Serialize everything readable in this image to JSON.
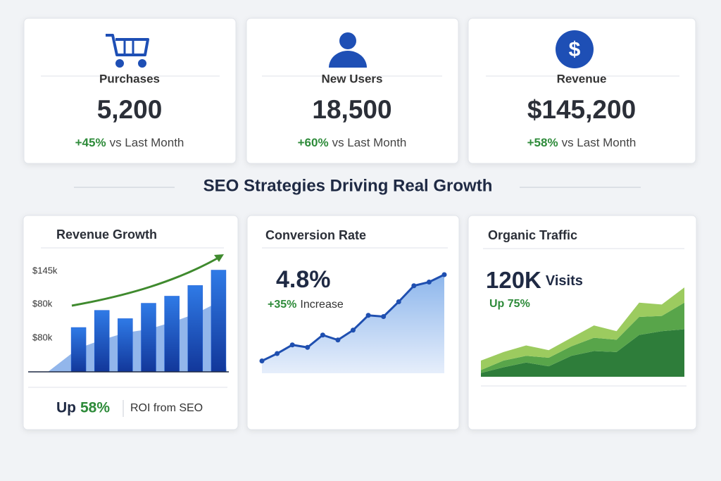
{
  "kpis": [
    {
      "label": "Purchases",
      "value": "5,200",
      "change": "+45%",
      "note": "vs Last Month"
    },
    {
      "label": "New Users",
      "value": "18,500",
      "change": "+60%",
      "note": "vs Last Month"
    },
    {
      "label": "Revenue",
      "value": "$145,200",
      "change": "+58%",
      "note": "vs Last Month"
    }
  ],
  "section_title": "SEO Strategies Driving Real Growth",
  "chart_data": [
    {
      "type": "bar",
      "title": "Revenue Growth",
      "axis_labels": [
        "$145k",
        "$80k",
        "$80k"
      ],
      "categories": [
        null,
        null,
        null,
        null,
        null,
        null,
        null
      ],
      "ylim": [
        0,
        100
      ],
      "series": [
        {
          "color": "#1f5fd6",
          "values": [
            37.5,
            52,
            45,
            58,
            64,
            73,
            86
          ]
        },
        {
          "color": "#7fa9e8",
          "values": [
            20,
            27,
            33,
            36,
            42,
            49,
            59
          ]
        }
      ],
      "footer": {
        "prefix": "Up",
        "value": "58%",
        "text": "ROI from SEO"
      }
    },
    {
      "type": "line",
      "title": "Conversion Rate",
      "headline": "4.8%",
      "subline_value": "+35%",
      "subline_text": "Increase",
      "categories": [
        null,
        null,
        null,
        null,
        null,
        null,
        null,
        null,
        null,
        null,
        null,
        null,
        null
      ],
      "values": [
        10,
        16,
        23,
        21,
        31,
        27,
        35,
        47,
        46,
        58,
        71,
        74,
        80
      ],
      "color": "#1f4fb0",
      "ylim": [
        0,
        100
      ]
    },
    {
      "type": "area",
      "stacked": true,
      "title": "Organic Traffic",
      "headline": "120K",
      "headline_unit": "Visits",
      "subline": "Up 75%",
      "categories": [
        null,
        null,
        null,
        null,
        null,
        null,
        null,
        null,
        null,
        null
      ],
      "ylim": [
        0,
        100
      ],
      "series": [
        {
          "color": "#2e7d3a",
          "values": [
            4,
            10,
            15,
            11,
            22,
            27,
            26,
            44,
            48,
            50
          ]
        },
        {
          "color": "#58a54a",
          "values": [
            3,
            7,
            7,
            9,
            10,
            14,
            13,
            19,
            16,
            28
          ]
        },
        {
          "color": "#9ccb5f",
          "values": [
            10,
            9,
            11,
            8,
            9,
            13,
            9,
            15,
            12,
            16
          ]
        }
      ]
    }
  ]
}
